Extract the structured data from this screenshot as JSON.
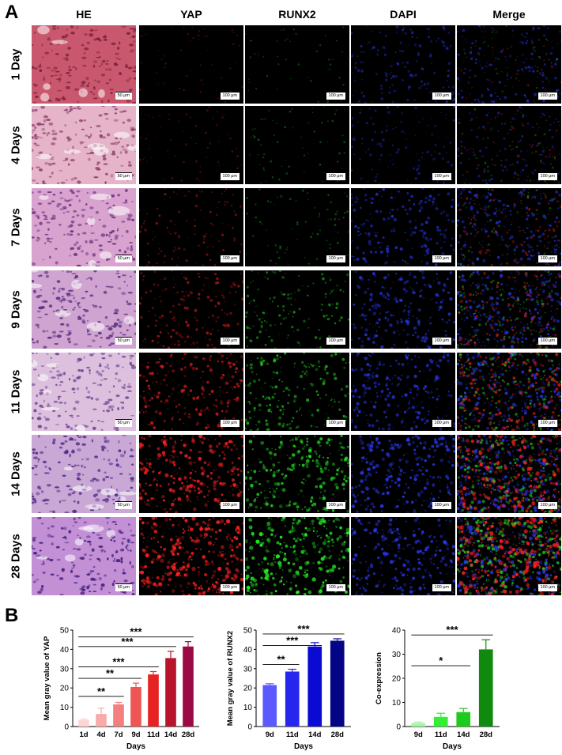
{
  "panels": {
    "a": "A",
    "b": "B"
  },
  "columns": [
    "HE",
    "YAP",
    "RUNX2",
    "DAPI",
    "Merge"
  ],
  "rows": [
    "1 Day",
    "4 Days",
    "7 Days",
    "9 Days",
    "11 Days",
    "14 Days",
    "28 Days"
  ],
  "scale_he": "50 μm",
  "scale_fluor": "100 μm",
  "signal_levels": {
    "YAP": [
      0.05,
      0.1,
      0.3,
      0.45,
      0.65,
      0.9,
      1.0
    ],
    "RUNX2": [
      0.02,
      0.1,
      0.15,
      0.4,
      0.6,
      0.8,
      1.0
    ],
    "DAPI": [
      0.45,
      0.3,
      0.6,
      0.7,
      0.7,
      0.85,
      0.8
    ]
  },
  "chart_data": [
    {
      "type": "bar",
      "categories": [
        "1d",
        "4d",
        "7d",
        "9d",
        "11d",
        "14d",
        "28d"
      ],
      "values": [
        3.5,
        6.5,
        11.5,
        20.5,
        27,
        35.5,
        41.5
      ],
      "errors": [
        0.5,
        3,
        1,
        2,
        1.5,
        3.5,
        2.5
      ],
      "colors": [
        "#fdd5d5",
        "#f9aaaa",
        "#f47f7f",
        "#ef5555",
        "#e62222",
        "#b8142c",
        "#9b0a45"
      ],
      "xlabel": "Days",
      "ylabel": "Mean gray value of YAP",
      "ylim": [
        0,
        50
      ],
      "yticks": [
        "0",
        "10",
        "20",
        "30",
        "40",
        "50"
      ],
      "significance": [
        {
          "from": "1d",
          "to": "7d",
          "label": "**"
        },
        {
          "from": "1d",
          "to": "9d",
          "label": "**"
        },
        {
          "from": "1d",
          "to": "11d",
          "label": "***"
        },
        {
          "from": "1d",
          "to": "14d",
          "label": "***"
        },
        {
          "from": "1d",
          "to": "28d",
          "label": "***"
        }
      ]
    },
    {
      "type": "bar",
      "categories": [
        "9d",
        "11d",
        "14d",
        "28d"
      ],
      "values": [
        21.5,
        28.5,
        41.5,
        44.5
      ],
      "errors": [
        0.7,
        1.2,
        2,
        1
      ],
      "colors": [
        "#5a5aff",
        "#2626ee",
        "#0a0ad2",
        "#040486"
      ],
      "xlabel": "Days",
      "ylabel": "Mean gray value of RUNX2",
      "ylim": [
        0,
        50
      ],
      "yticks": [
        "0",
        "10",
        "20",
        "30",
        "40",
        "50"
      ],
      "significance": [
        {
          "from": "9d",
          "to": "11d",
          "label": "**"
        },
        {
          "from": "9d",
          "to": "14d",
          "label": "***"
        },
        {
          "from": "9d",
          "to": "28d",
          "label": "***"
        }
      ]
    },
    {
      "type": "bar",
      "categories": [
        "9d",
        "11d",
        "14d",
        "28d"
      ],
      "values": [
        1.5,
        4,
        6,
        32
      ],
      "errors": [
        0.4,
        1.5,
        1.5,
        4
      ],
      "colors": [
        "#a8f5a8",
        "#33ee33",
        "#1fca1f",
        "#0f8a0f"
      ],
      "xlabel": "Days",
      "ylabel": "Co-expression",
      "ylim": [
        0,
        40
      ],
      "yticks": [
        "0",
        "10",
        "20",
        "30",
        "40"
      ],
      "significance": [
        {
          "from": "9d",
          "to": "14d",
          "label": "*"
        },
        {
          "from": "9d",
          "to": "28d",
          "label": "***"
        }
      ]
    }
  ]
}
